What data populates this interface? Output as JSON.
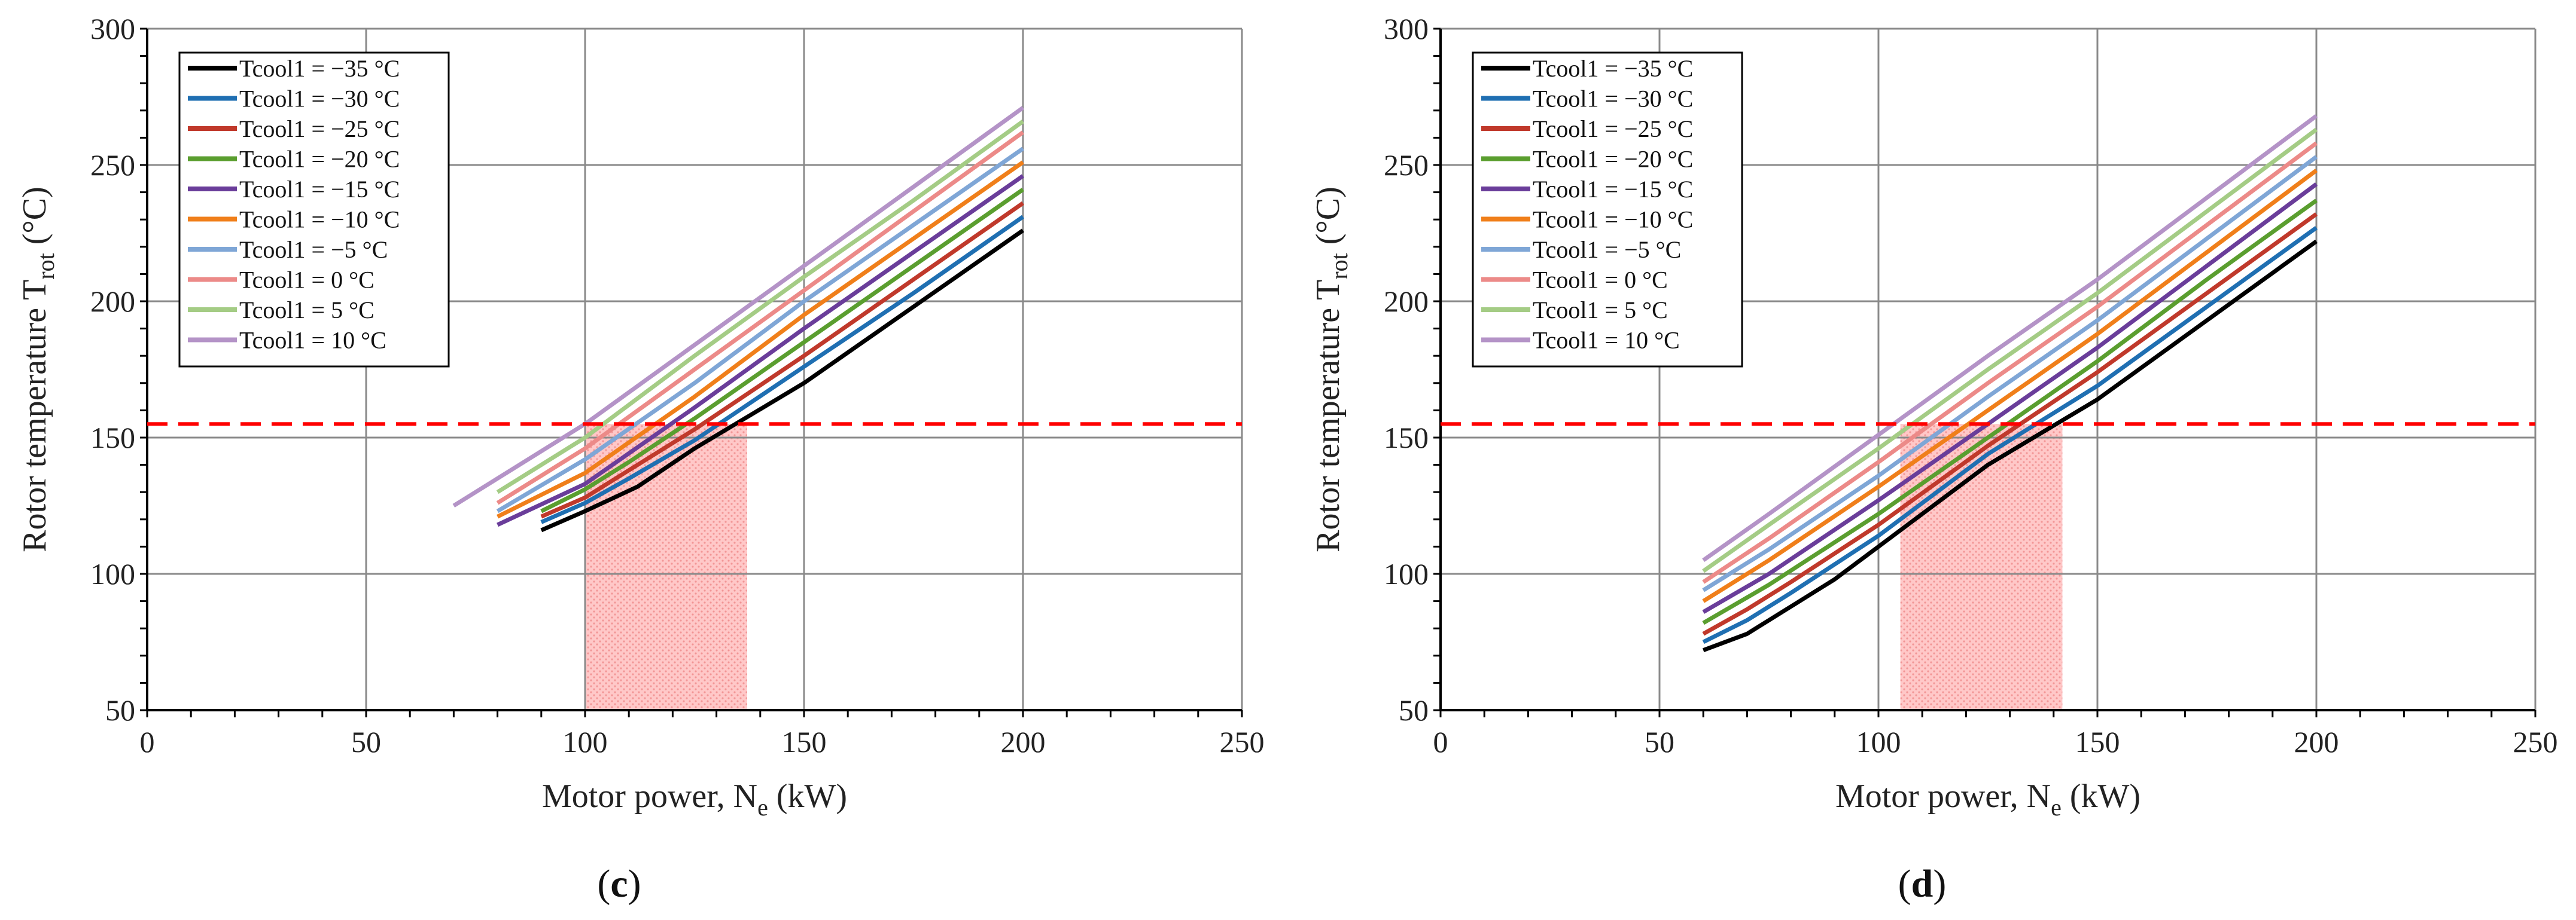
{
  "figure": {
    "panels": [
      {
        "label_open": "(",
        "label_letter": "c",
        "label_close": ")"
      },
      {
        "label_open": "(",
        "label_letter": "d",
        "label_close": ")"
      }
    ]
  },
  "colors": {
    "grid": "#8a8a8a",
    "axis": "#000000",
    "limit_line": "#ff0000",
    "shade": "#ffb3b3",
    "series": [
      "#000000",
      "#1f6fb2",
      "#c0392b",
      "#5a9e2f",
      "#6a3d9a",
      "#f07f1a",
      "#7fa6d6",
      "#ec8a88",
      "#a4cc85",
      "#b493c7"
    ]
  },
  "chart_data": [
    {
      "type": "line",
      "panel": "c",
      "title": "",
      "xlabel": "Motor power, N",
      "xlabel_sub": "e",
      "xlabel_unit": " (kW)",
      "ylabel": "Rotor temperature T",
      "ylabel_sub": "rot",
      "ylabel_unit": " (°C)",
      "xlim": [
        0,
        250
      ],
      "ylim": [
        50,
        300
      ],
      "xticks": [
        0,
        50,
        100,
        150,
        200,
        250
      ],
      "yticks": [
        50,
        100,
        150,
        200,
        250,
        300
      ],
      "grid": true,
      "legend_position": "top-left",
      "limit_line": {
        "y": 155,
        "style": "dashed"
      },
      "shaded_region": {
        "x_from": 100,
        "x_to": 137,
        "y_from": 50,
        "y_to": 155
      },
      "series": [
        {
          "name": "Tcool1 = −35 °C",
          "x": [
            90,
            100,
            112,
            125,
            150,
            175,
            200
          ],
          "y": [
            116,
            123,
            132,
            146,
            170,
            198,
            226
          ]
        },
        {
          "name": "Tcool1 = −30 °C",
          "x": [
            90,
            100,
            110,
            125,
            150,
            175,
            200
          ],
          "y": [
            119,
            126,
            135,
            149,
            176,
            203,
            231
          ]
        },
        {
          "name": "Tcool1 = −25 °C",
          "x": [
            90,
            100,
            110,
            125,
            150,
            175,
            200
          ],
          "y": [
            121,
            128,
            138,
            153,
            180,
            208,
            236
          ]
        },
        {
          "name": "Tcool1 = −20 °C",
          "x": [
            90,
            100,
            110,
            125,
            150,
            175,
            200
          ],
          "y": [
            123,
            131,
            141,
            157,
            185,
            213,
            241
          ]
        },
        {
          "name": "Tcool1 = −15 °C",
          "x": [
            80,
            100,
            125,
            150,
            175,
            200
          ],
          "y": [
            118,
            133,
            161,
            190,
            218,
            246
          ]
        },
        {
          "name": "Tcool1 = −10 °C",
          "x": [
            80,
            100,
            125,
            150,
            175,
            200
          ],
          "y": [
            121,
            137,
            165,
            195,
            223,
            251
          ]
        },
        {
          "name": "Tcool1 = −5 °C",
          "x": [
            80,
            100,
            125,
            150,
            175,
            200
          ],
          "y": [
            123,
            142,
            170,
            200,
            228,
            256
          ]
        },
        {
          "name": "Tcool1 = 0 °C",
          "x": [
            80,
            100,
            125,
            150,
            175,
            200
          ],
          "y": [
            126,
            146,
            175,
            204,
            233,
            262
          ]
        },
        {
          "name": "Tcool1 = 5 °C",
          "x": [
            80,
            100,
            125,
            150,
            175,
            200
          ],
          "y": [
            130,
            150,
            180,
            209,
            237,
            266
          ]
        },
        {
          "name": "Tcool1 = 10 °C",
          "x": [
            70,
            100,
            125,
            150,
            175,
            200
          ],
          "y": [
            125,
            155,
            184,
            213,
            242,
            271
          ]
        }
      ]
    },
    {
      "type": "line",
      "panel": "d",
      "title": "",
      "xlabel": "Motor power, N",
      "xlabel_sub": "e",
      "xlabel_unit": " (kW)",
      "ylabel": "Rotor temperature T",
      "ylabel_sub": "rot",
      "ylabel_unit": " (°C)",
      "xlim": [
        0,
        250
      ],
      "ylim": [
        50,
        300
      ],
      "xticks": [
        0,
        50,
        100,
        150,
        200,
        250
      ],
      "yticks": [
        50,
        100,
        150,
        200,
        250,
        300
      ],
      "grid": true,
      "legend_position": "top-left",
      "limit_line": {
        "y": 155,
        "style": "dashed"
      },
      "shaded_region": {
        "x_from": 105,
        "x_to": 142,
        "y_from": 50,
        "y_to": 155
      },
      "series": [
        {
          "name": "Tcool1 = −35 °C",
          "x": [
            60,
            70,
            80,
            90,
            100,
            125,
            150,
            175,
            200
          ],
          "y": [
            72,
            78,
            88,
            98,
            110,
            140,
            164,
            193,
            222
          ]
        },
        {
          "name": "Tcool1 = −30 °C",
          "x": [
            60,
            70,
            80,
            100,
            125,
            150,
            175,
            200
          ],
          "y": [
            75,
            83,
            93,
            114,
            144,
            169,
            198,
            227
          ]
        },
        {
          "name": "Tcool1 = −25 °C",
          "x": [
            60,
            70,
            80,
            100,
            125,
            150,
            175,
            200
          ],
          "y": [
            78,
            87,
            97,
            118,
            147,
            174,
            203,
            232
          ]
        },
        {
          "name": "Tcool1 = −20 °C",
          "x": [
            60,
            75,
            100,
            125,
            150,
            175,
            200
          ],
          "y": [
            82,
            96,
            122,
            150,
            178,
            208,
            237
          ]
        },
        {
          "name": "Tcool1 = −15 °C",
          "x": [
            60,
            75,
            100,
            125,
            150,
            175,
            200
          ],
          "y": [
            86,
            100,
            127,
            155,
            183,
            213,
            243
          ]
        },
        {
          "name": "Tcool1 = −10 °C",
          "x": [
            60,
            75,
            100,
            125,
            150,
            175,
            200
          ],
          "y": [
            90,
            105,
            132,
            160,
            188,
            218,
            248
          ]
        },
        {
          "name": "Tcool1 = −5 °C",
          "x": [
            60,
            75,
            100,
            125,
            150,
            175,
            200
          ],
          "y": [
            94,
            109,
            136,
            165,
            193,
            223,
            253
          ]
        },
        {
          "name": "Tcool1 = 0 °C",
          "x": [
            60,
            75,
            100,
            125,
            150,
            175,
            200
          ],
          "y": [
            97,
            113,
            141,
            170,
            198,
            228,
            258
          ]
        },
        {
          "name": "Tcool1 = 5 °C",
          "x": [
            60,
            75,
            100,
            125,
            150,
            175,
            200
          ],
          "y": [
            101,
            118,
            146,
            175,
            203,
            233,
            263
          ]
        },
        {
          "name": "Tcool1 = 10 °C",
          "x": [
            60,
            75,
            100,
            125,
            150,
            175,
            200
          ],
          "y": [
            105,
            122,
            151,
            180,
            208,
            238,
            268
          ]
        }
      ]
    }
  ]
}
